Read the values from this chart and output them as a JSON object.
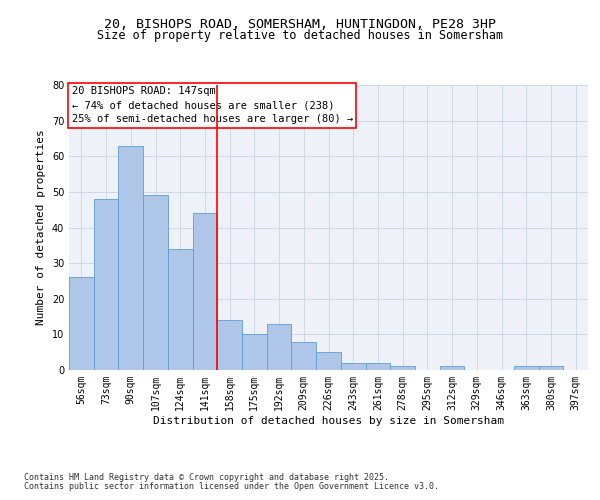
{
  "title_line1": "20, BISHOPS ROAD, SOMERSHAM, HUNTINGDON, PE28 3HP",
  "title_line2": "Size of property relative to detached houses in Somersham",
  "xlabel": "Distribution of detached houses by size in Somersham",
  "ylabel": "Number of detached properties",
  "categories": [
    "56sqm",
    "73sqm",
    "90sqm",
    "107sqm",
    "124sqm",
    "141sqm",
    "158sqm",
    "175sqm",
    "192sqm",
    "209sqm",
    "226sqm",
    "243sqm",
    "261sqm",
    "278sqm",
    "295sqm",
    "312sqm",
    "329sqm",
    "346sqm",
    "363sqm",
    "380sqm",
    "397sqm"
  ],
  "values": [
    26,
    48,
    63,
    49,
    34,
    44,
    14,
    10,
    13,
    8,
    5,
    2,
    2,
    1,
    0,
    1,
    0,
    0,
    1,
    1,
    0
  ],
  "bar_color": "#aec6e8",
  "bar_edge_color": "#5a9fd4",
  "ylim": [
    0,
    80
  ],
  "yticks": [
    0,
    10,
    20,
    30,
    40,
    50,
    60,
    70,
    80
  ],
  "grid_color": "#d0d8e8",
  "bg_color": "#eef2f8",
  "red_line_index": 5,
  "annotation_title": "20 BISHOPS ROAD: 147sqm",
  "annotation_line1": "← 74% of detached houses are smaller (238)",
  "annotation_line2": "25% of semi-detached houses are larger (80) →",
  "footer_line1": "Contains HM Land Registry data © Crown copyright and database right 2025.",
  "footer_line2": "Contains public sector information licensed under the Open Government Licence v3.0.",
  "title_fontsize": 9.5,
  "title2_fontsize": 8.5,
  "axis_label_fontsize": 8,
  "tick_fontsize": 7,
  "annotation_fontsize": 7.5,
  "footer_fontsize": 6
}
